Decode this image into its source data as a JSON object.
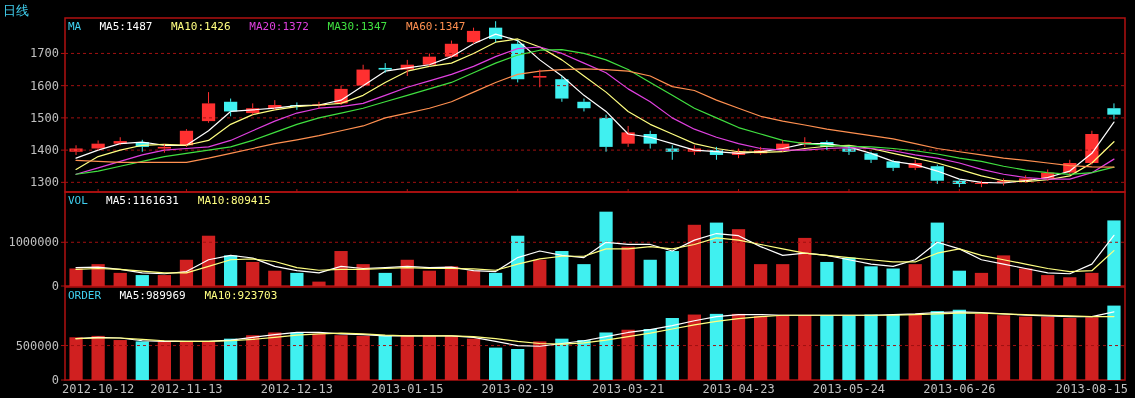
{
  "chart_data": [
    {
      "type": "candlestick",
      "title": "日线",
      "legend_title": "MA",
      "legend": "top left",
      "grid": "y",
      "tick_labels": "y",
      "categories": [
        null,
        "2012-10-12",
        null,
        null,
        null,
        "2012-11-13",
        null,
        null,
        null,
        null,
        "2012-12-13",
        null,
        null,
        null,
        null,
        "2013-01-15",
        null,
        null,
        null,
        null,
        "2013-02-19",
        null,
        null,
        null,
        null,
        "2013-03-21",
        null,
        null,
        null,
        null,
        "2013-04-23",
        null,
        null,
        null,
        null,
        "2013-05-24",
        null,
        null,
        null,
        null,
        "2013-06-26",
        null,
        null,
        null,
        null,
        null,
        "2013-08-15",
        null
      ],
      "ylim": [
        1270,
        1810
      ],
      "yticks": [
        1300,
        1400,
        1500,
        1600,
        1700
      ],
      "ohlc": [
        [
          1395,
          1415,
          1385,
          1405
        ],
        [
          1405,
          1430,
          1400,
          1420
        ],
        [
          1420,
          1440,
          1415,
          1428
        ],
        [
          1425,
          1432,
          1395,
          1410
        ],
        [
          1405,
          1418,
          1392,
          1410
        ],
        [
          1415,
          1465,
          1410,
          1460
        ],
        [
          1490,
          1580,
          1485,
          1545
        ],
        [
          1550,
          1560,
          1505,
          1520
        ],
        [
          1515,
          1545,
          1510,
          1530
        ],
        [
          1530,
          1555,
          1525,
          1540
        ],
        [
          1540,
          1548,
          1525,
          1538
        ],
        [
          1538,
          1550,
          1530,
          1542
        ],
        [
          1545,
          1600,
          1540,
          1590
        ],
        [
          1600,
          1665,
          1595,
          1650
        ],
        [
          1655,
          1670,
          1640,
          1650
        ],
        [
          1650,
          1680,
          1630,
          1665
        ],
        [
          1665,
          1700,
          1660,
          1690
        ],
        [
          1690,
          1740,
          1685,
          1730
        ],
        [
          1735,
          1780,
          1730,
          1770
        ],
        [
          1780,
          1800,
          1735,
          1745
        ],
        [
          1730,
          1740,
          1610,
          1620
        ],
        [
          1625,
          1650,
          1595,
          1630
        ],
        [
          1620,
          1630,
          1550,
          1560
        ],
        [
          1550,
          1560,
          1520,
          1530
        ],
        [
          1500,
          1510,
          1395,
          1410
        ],
        [
          1420,
          1475,
          1410,
          1455
        ],
        [
          1450,
          1460,
          1405,
          1420
        ],
        [
          1405,
          1415,
          1370,
          1395
        ],
        [
          1395,
          1415,
          1385,
          1405
        ],
        [
          1400,
          1410,
          1370,
          1385
        ],
        [
          1385,
          1405,
          1375,
          1395
        ],
        [
          1390,
          1410,
          1385,
          1400
        ],
        [
          1400,
          1430,
          1395,
          1420
        ],
        [
          1420,
          1440,
          1410,
          1425
        ],
        [
          1425,
          1430,
          1400,
          1410
        ],
        [
          1405,
          1412,
          1385,
          1395
        ],
        [
          1390,
          1395,
          1360,
          1370
        ],
        [
          1365,
          1370,
          1335,
          1345
        ],
        [
          1345,
          1370,
          1338,
          1360
        ],
        [
          1350,
          1355,
          1295,
          1305
        ],
        [
          1305,
          1310,
          1285,
          1295
        ],
        [
          1295,
          1305,
          1285,
          1298
        ],
        [
          1298,
          1312,
          1290,
          1305
        ],
        [
          1305,
          1322,
          1300,
          1312
        ],
        [
          1312,
          1340,
          1305,
          1330
        ],
        [
          1330,
          1370,
          1325,
          1360
        ],
        [
          1360,
          1460,
          1355,
          1450
        ],
        [
          1530,
          1545,
          1495,
          1510
        ]
      ],
      "series": [
        {
          "name": "MA5:1487",
          "type": "line",
          "color": "#ffffff",
          "values": [
            1375,
            1400,
            1420,
            1425,
            1415,
            1415,
            1460,
            1520,
            1525,
            1530,
            1538,
            1540,
            1555,
            1600,
            1645,
            1655,
            1665,
            1690,
            1730,
            1760,
            1740,
            1680,
            1630,
            1570,
            1520,
            1450,
            1440,
            1420,
            1400,
            1395,
            1390,
            1395,
            1405,
            1420,
            1420,
            1410,
            1390,
            1365,
            1355,
            1335,
            1310,
            1300,
            1298,
            1305,
            1315,
            1335,
            1390,
            1487
          ]
        },
        {
          "name": "MA10:1426",
          "type": "line",
          "color": "#ffff80",
          "values": [
            1340,
            1380,
            1400,
            1415,
            1418,
            1415,
            1430,
            1480,
            1510,
            1525,
            1535,
            1540,
            1545,
            1570,
            1610,
            1645,
            1660,
            1670,
            1700,
            1735,
            1745,
            1720,
            1680,
            1630,
            1580,
            1520,
            1480,
            1450,
            1420,
            1405,
            1395,
            1393,
            1395,
            1405,
            1412,
            1415,
            1405,
            1390,
            1375,
            1360,
            1340,
            1320,
            1305,
            1302,
            1308,
            1320,
            1360,
            1426
          ]
        },
        {
          "name": "MA20:1372",
          "type": "line",
          "color": "#e040e0",
          "values": [
            1325,
            1345,
            1365,
            1385,
            1400,
            1405,
            1410,
            1430,
            1460,
            1490,
            1515,
            1530,
            1535,
            1545,
            1570,
            1595,
            1615,
            1635,
            1660,
            1690,
            1715,
            1720,
            1700,
            1670,
            1640,
            1590,
            1550,
            1500,
            1465,
            1440,
            1420,
            1405,
            1400,
            1400,
            1405,
            1408,
            1405,
            1398,
            1385,
            1375,
            1360,
            1340,
            1325,
            1315,
            1310,
            1310,
            1330,
            1372
          ]
        },
        {
          "name": "MA30:1347",
          "type": "line",
          "color": "#40e040",
          "values": [
            1325,
            1335,
            1350,
            1365,
            1380,
            1390,
            1400,
            1410,
            1430,
            1455,
            1480,
            1500,
            1515,
            1530,
            1550,
            1570,
            1590,
            1610,
            1640,
            1670,
            1695,
            1710,
            1712,
            1700,
            1680,
            1650,
            1610,
            1570,
            1530,
            1500,
            1470,
            1450,
            1430,
            1420,
            1415,
            1412,
            1410,
            1405,
            1398,
            1388,
            1375,
            1365,
            1350,
            1338,
            1330,
            1325,
            1330,
            1347
          ]
        },
        {
          "name": "MA60:1347",
          "type": "line",
          "color": "#ff9050",
          "values": [
            1368,
            1365,
            1362,
            1362,
            1362,
            1362,
            1375,
            1390,
            1405,
            1420,
            1432,
            1445,
            1460,
            1475,
            1500,
            1515,
            1530,
            1550,
            1580,
            1610,
            1635,
            1645,
            1650,
            1652,
            1650,
            1645,
            1630,
            1597,
            1585,
            1555,
            1530,
            1505,
            1490,
            1478,
            1465,
            1455,
            1445,
            1435,
            1420,
            1405,
            1395,
            1385,
            1375,
            1368,
            1360,
            1352,
            1348,
            1347
          ]
        }
      ]
    },
    {
      "type": "bar",
      "legend_title": "VOL",
      "legend": "top left",
      "tick_labels": "y",
      "ref_lines": [
        {
          "axis": "y",
          "value": 1000000,
          "color": "#a01010",
          "line_style": "dashed"
        }
      ],
      "categories": [
        null,
        "2012-10-12",
        null,
        null,
        null,
        "2012-11-13",
        null,
        null,
        null,
        null,
        "2012-12-13",
        null,
        null,
        null,
        null,
        "2013-01-15",
        null,
        null,
        null,
        null,
        "2013-02-19",
        null,
        null,
        null,
        null,
        "2013-03-21",
        null,
        null,
        null,
        null,
        "2013-04-23",
        null,
        null,
        null,
        null,
        "2013-05-24",
        null,
        null,
        null,
        null,
        "2013-06-26",
        null,
        null,
        null,
        null,
        null,
        "2013-08-15",
        null
      ],
      "ylim": [
        0,
        2150000
      ],
      "yticks": [
        0,
        1000000
      ],
      "values": [
        400000,
        500000,
        300000,
        250000,
        250000,
        600000,
        1150000,
        700000,
        550000,
        350000,
        300000,
        100000,
        800000,
        500000,
        300000,
        600000,
        350000,
        450000,
        350000,
        300000,
        1150000,
        600000,
        800000,
        500000,
        1700000,
        900000,
        600000,
        800000,
        1400000,
        1450000,
        1300000,
        500000,
        500000,
        1100000,
        550000,
        650000,
        450000,
        400000,
        500000,
        1450000,
        350000,
        300000,
        700000,
        400000,
        250000,
        200000,
        300000,
        1500000
      ],
      "colors": [
        "#d02020",
        "#d02020",
        "#d02020",
        "#40f0f0",
        "#d02020",
        "#d02020",
        "#d02020",
        "#40f0f0",
        "#d02020",
        "#d02020",
        "#40f0f0",
        "#d02020",
        "#d02020",
        "#d02020",
        "#40f0f0",
        "#d02020",
        "#d02020",
        "#d02020",
        "#d02020",
        "#40f0f0",
        "#40f0f0",
        "#d02020",
        "#40f0f0",
        "#40f0f0",
        "#40f0f0",
        "#d02020",
        "#40f0f0",
        "#40f0f0",
        "#d02020",
        "#40f0f0",
        "#d02020",
        "#d02020",
        "#d02020",
        "#d02020",
        "#40f0f0",
        "#40f0f0",
        "#40f0f0",
        "#40f0f0",
        "#d02020",
        "#40f0f0",
        "#40f0f0",
        "#d02020",
        "#d02020",
        "#d02020",
        "#d02020",
        "#d02020",
        "#d02020",
        "#40f0f0"
      ],
      "series": [
        {
          "name": "MA5:1161631",
          "type": "line",
          "color": "#ffffff",
          "values": [
            420000,
            430000,
            380000,
            300000,
            280000,
            330000,
            600000,
            700000,
            640000,
            450000,
            350000,
            300000,
            450000,
            400000,
            420000,
            450000,
            420000,
            430000,
            350000,
            330000,
            650000,
            800000,
            700000,
            650000,
            1000000,
            950000,
            950000,
            800000,
            1050000,
            1200000,
            1150000,
            900000,
            700000,
            750000,
            700000,
            600000,
            500000,
            450000,
            600000,
            1000000,
            850000,
            600000,
            500000,
            400000,
            300000,
            280000,
            500000,
            1160000
          ]
        },
        {
          "name": "MA10:809415",
          "type": "line",
          "color": "#ffff80",
          "values": [
            380000,
            400000,
            380000,
            340000,
            300000,
            300000,
            450000,
            600000,
            620000,
            560000,
            420000,
            360000,
            380000,
            380000,
            400000,
            420000,
            400000,
            400000,
            390000,
            360000,
            500000,
            620000,
            680000,
            680000,
            850000,
            850000,
            900000,
            850000,
            950000,
            1100000,
            1050000,
            950000,
            850000,
            750000,
            700000,
            650000,
            600000,
            550000,
            550000,
            750000,
            850000,
            700000,
            600000,
            500000,
            400000,
            330000,
            350000,
            810000
          ]
        }
      ]
    },
    {
      "type": "bar",
      "legend_title": "ORDER",
      "legend": "top left",
      "ref_lines": [
        {
          "axis": "y",
          "value": 500000,
          "color": "#a01010",
          "line_style": "dashed"
        }
      ],
      "categories": [
        null,
        "2012-10-12",
        null,
        null,
        null,
        "2012-11-13",
        null,
        null,
        null,
        null,
        "2012-12-13",
        null,
        null,
        null,
        null,
        "2013-01-15",
        null,
        null,
        null,
        null,
        "2013-02-19",
        null,
        null,
        null,
        null,
        "2013-03-21",
        null,
        null,
        null,
        null,
        "2013-04-23",
        null,
        null,
        null,
        null,
        "2013-05-24",
        null,
        null,
        null,
        null,
        "2013-06-26",
        null,
        null,
        null,
        null,
        null,
        "2013-08-15",
        null
      ],
      "ylim": [
        0,
        1350000
      ],
      "yticks": [
        0,
        500000
      ],
      "values": [
        620000,
        640000,
        580000,
        560000,
        560000,
        560000,
        560000,
        600000,
        650000,
        690000,
        690000,
        670000,
        650000,
        640000,
        640000,
        640000,
        640000,
        640000,
        600000,
        470000,
        450000,
        560000,
        600000,
        580000,
        690000,
        730000,
        740000,
        900000,
        950000,
        960000,
        960000,
        930000,
        930000,
        940000,
        940000,
        930000,
        950000,
        950000,
        960000,
        1000000,
        1020000,
        960000,
        940000,
        920000,
        920000,
        900000,
        910000,
        1080000
      ],
      "colors": [
        "#d02020",
        "#d02020",
        "#d02020",
        "#40f0f0",
        "#d02020",
        "#d02020",
        "#d02020",
        "#40f0f0",
        "#d02020",
        "#d02020",
        "#40f0f0",
        "#d02020",
        "#d02020",
        "#d02020",
        "#40f0f0",
        "#d02020",
        "#d02020",
        "#d02020",
        "#d02020",
        "#40f0f0",
        "#40f0f0",
        "#d02020",
        "#40f0f0",
        "#40f0f0",
        "#40f0f0",
        "#d02020",
        "#40f0f0",
        "#40f0f0",
        "#d02020",
        "#40f0f0",
        "#d02020",
        "#d02020",
        "#d02020",
        "#d02020",
        "#40f0f0",
        "#40f0f0",
        "#40f0f0",
        "#40f0f0",
        "#d02020",
        "#40f0f0",
        "#40f0f0",
        "#d02020",
        "#d02020",
        "#d02020",
        "#d02020",
        "#d02020",
        "#d02020",
        "#40f0f0"
      ],
      "series": [
        {
          "name": "MA5:989969",
          "type": "line",
          "color": "#ffffff",
          "values": [
            600000,
            620000,
            610000,
            570000,
            560000,
            560000,
            560000,
            580000,
            620000,
            660000,
            690000,
            690000,
            670000,
            660000,
            640000,
            640000,
            640000,
            640000,
            620000,
            560000,
            500000,
            490000,
            530000,
            570000,
            630000,
            690000,
            730000,
            790000,
            860000,
            920000,
            950000,
            950000,
            940000,
            940000,
            940000,
            940000,
            940000,
            950000,
            960000,
            980000,
            990000,
            980000,
            960000,
            940000,
            930000,
            920000,
            920000,
            990000
          ]
        },
        {
          "name": "MA10:923703",
          "type": "line",
          "color": "#ffff80",
          "values": [
            600000,
            610000,
            610000,
            590000,
            570000,
            560000,
            560000,
            570000,
            590000,
            620000,
            650000,
            670000,
            680000,
            670000,
            650000,
            640000,
            640000,
            640000,
            630000,
            600000,
            560000,
            530000,
            520000,
            540000,
            580000,
            630000,
            680000,
            740000,
            800000,
            850000,
            890000,
            920000,
            940000,
            940000,
            940000,
            940000,
            940000,
            940000,
            950000,
            960000,
            970000,
            970000,
            960000,
            950000,
            940000,
            930000,
            920000,
            920000
          ]
        }
      ]
    }
  ]
}
